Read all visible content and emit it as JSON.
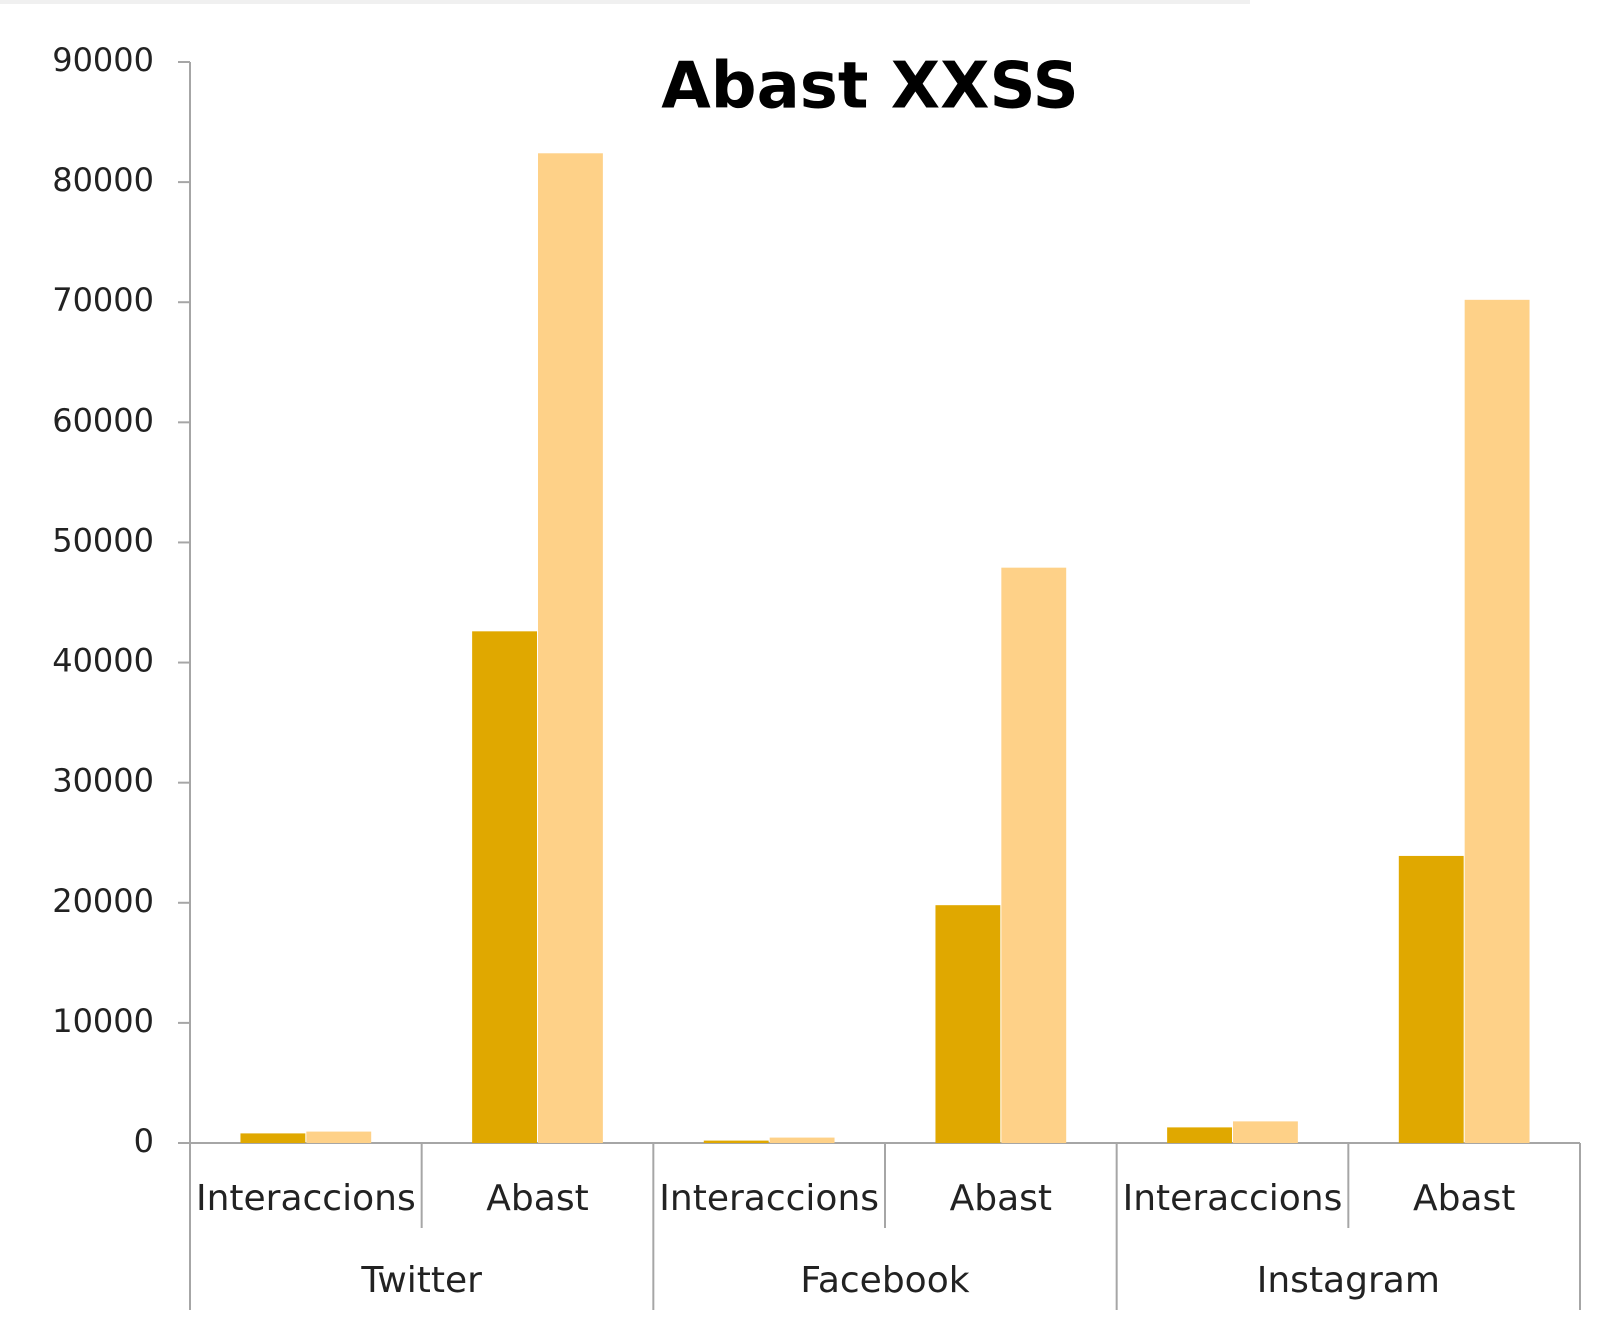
{
  "chart_data": {
    "type": "bar",
    "title": "Abast XXSS",
    "categories": [
      "Interaccions",
      "Abast",
      "Interaccions",
      "Abast",
      "Interaccions",
      "Abast"
    ],
    "groups": [
      "Twitter",
      "Facebook",
      "Instagram"
    ],
    "series": [
      {
        "color": "#e0a800",
        "values": [
          800,
          42600,
          200,
          19800,
          1300,
          23900
        ]
      },
      {
        "color": "#fed188",
        "values": [
          950,
          82400,
          450,
          47900,
          1800,
          70200
        ]
      }
    ],
    "ylim": [
      0,
      90000
    ],
    "yticks": [
      0,
      10000,
      20000,
      30000,
      40000,
      50000,
      60000,
      70000,
      80000,
      90000
    ]
  }
}
